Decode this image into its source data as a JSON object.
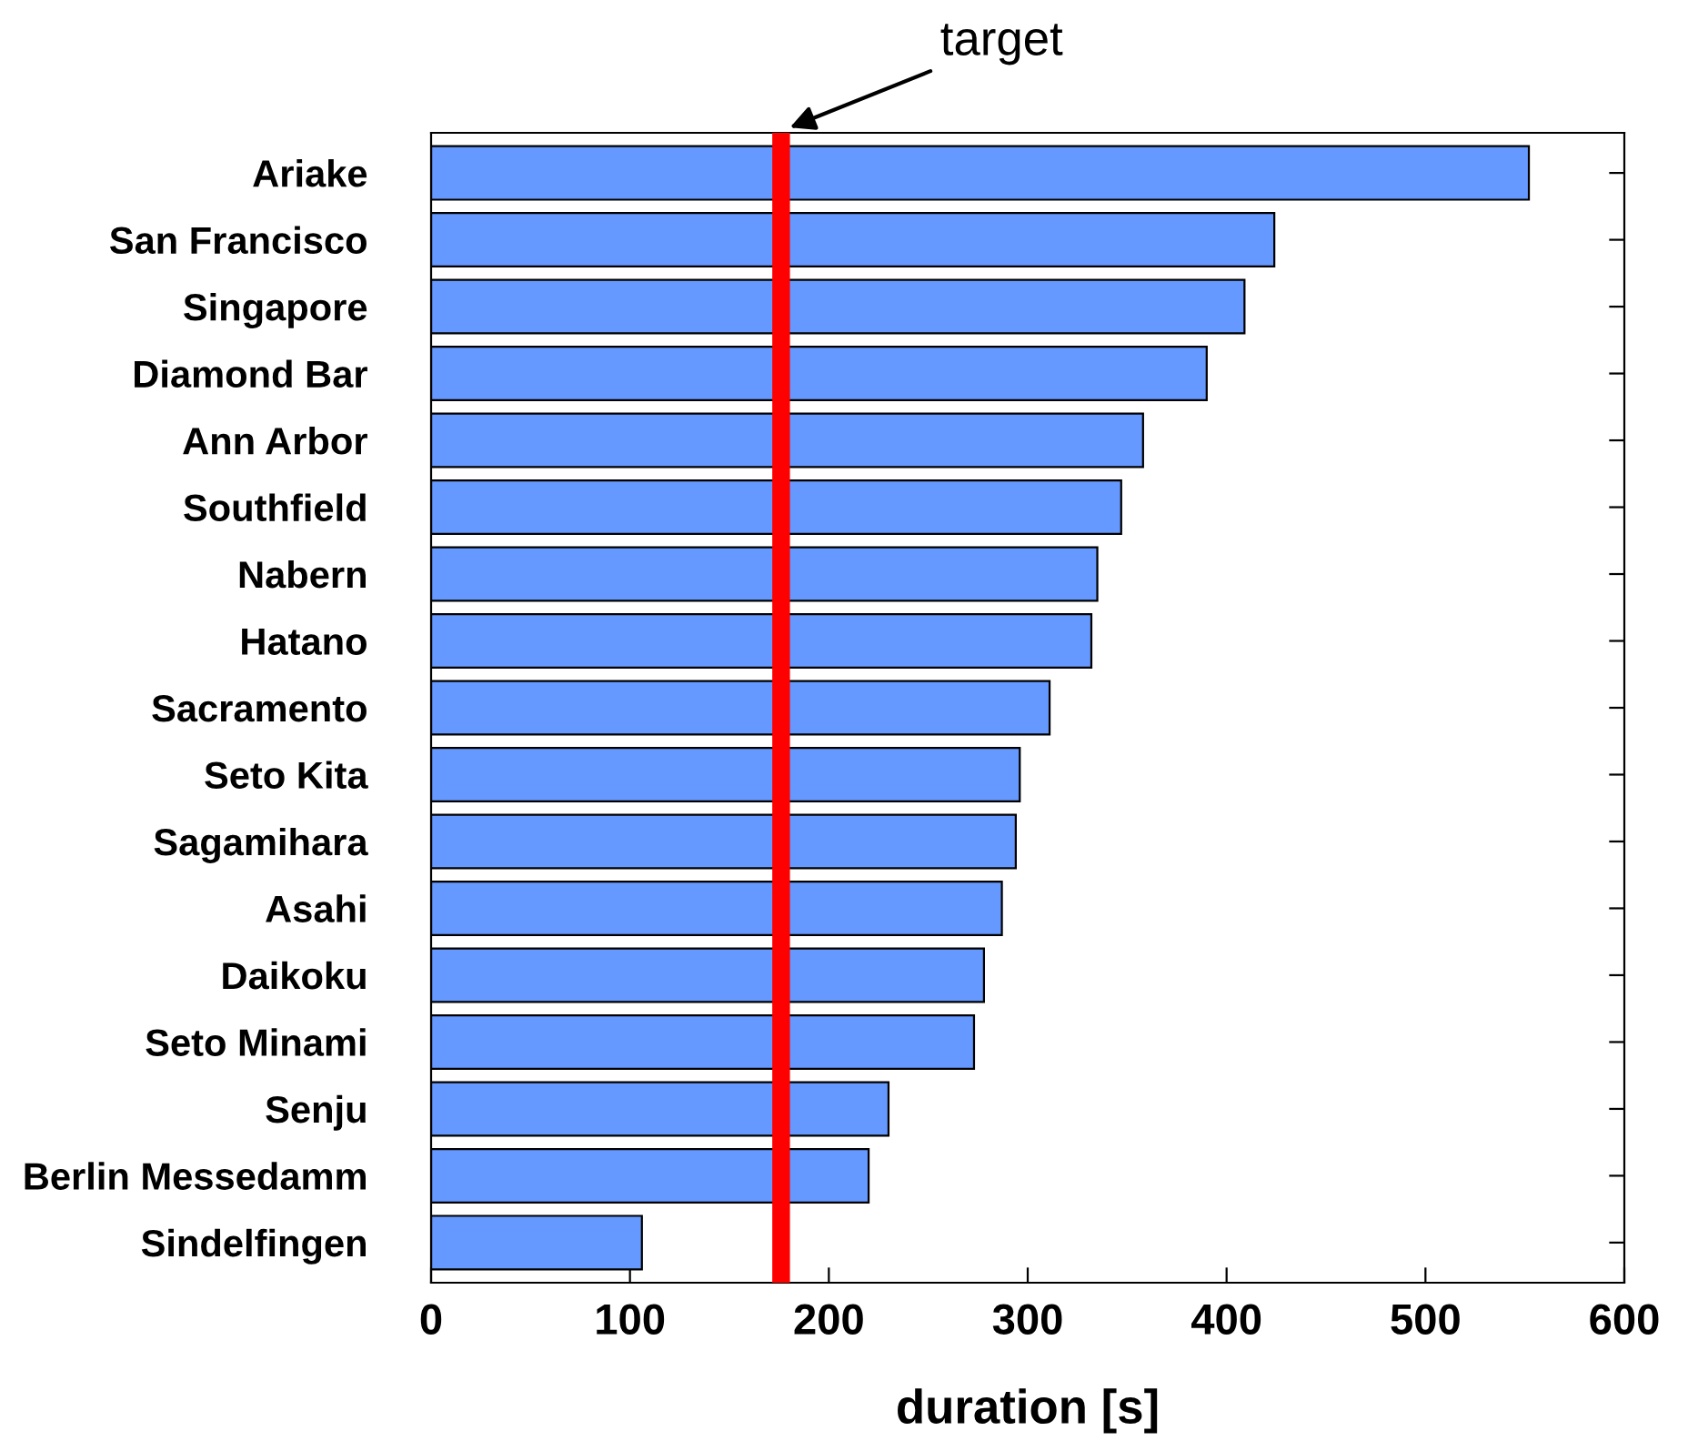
{
  "chart_data": {
    "type": "bar",
    "orientation": "horizontal",
    "xlabel": "duration [s]",
    "categories": [
      "Ariake",
      "San Francisco",
      "Singapore",
      "Diamond Bar",
      "Ann Arbor",
      "Southfield",
      "Nabern",
      "Hatano",
      "Sacramento",
      "Seto Kita",
      "Sagamihara",
      "Asahi",
      "Daikoku",
      "Seto Minami",
      "Senju",
      "Berlin Messedamm",
      "Sindelfingen"
    ],
    "values": [
      552,
      424,
      409,
      390,
      358,
      347,
      335,
      332,
      311,
      296,
      294,
      287,
      278,
      273,
      230,
      220,
      106
    ],
    "color": "#6699ff",
    "xlim": [
      0,
      600
    ],
    "xticks": [
      0,
      100,
      200,
      300,
      400,
      500,
      600
    ],
    "grid": false,
    "legend": false,
    "ref_lines": [
      {
        "axis": "x",
        "value": 176,
        "label": "target",
        "color": "#ff0000"
      }
    ]
  }
}
